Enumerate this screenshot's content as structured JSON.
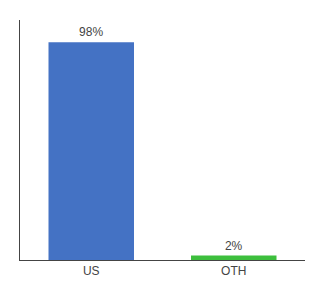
{
  "chart_data": {
    "type": "bar",
    "categories": [
      "US",
      "OTH"
    ],
    "values": [
      98,
      2
    ],
    "value_labels": [
      "98%",
      "2%"
    ],
    "colors": [
      "#4472c4",
      "#3dbf3d"
    ],
    "ylim": [
      0,
      108
    ],
    "grid": false,
    "data_labels": true,
    "tick_labels": "x"
  }
}
